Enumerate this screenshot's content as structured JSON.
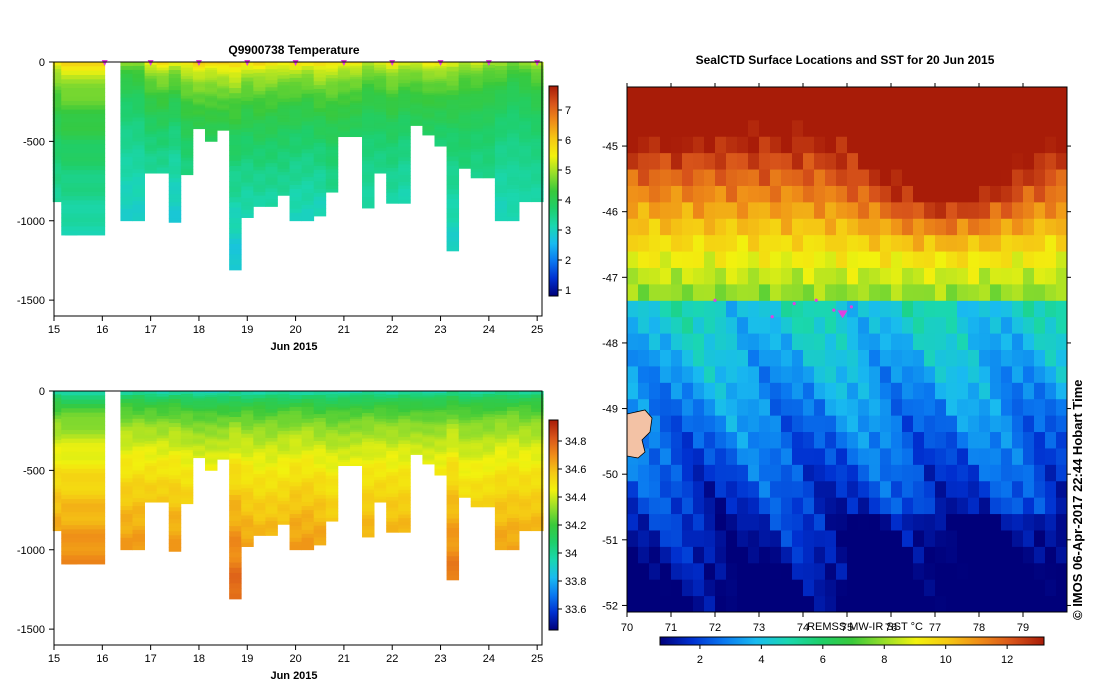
{
  "colors": {
    "profile_scale": [
      "#00007a",
      "#0030d0",
      "#0a78f0",
      "#19bbf0",
      "#1ad7b0",
      "#1ecf6b",
      "#39c93b",
      "#96de2a",
      "#f2f20e",
      "#f5c814",
      "#ef8c18",
      "#d8541a",
      "#a81c08"
    ],
    "missing": "#ffffff",
    "marker": "#e040e0",
    "land": "#f3c2a5"
  },
  "chart_data": [
    {
      "type": "heatmap",
      "name": "temperature-profile",
      "title": "Q9900738  Temperature",
      "xlabel": "Jun 2015",
      "ylabel": "",
      "xlim": [
        15,
        25.1
      ],
      "ylim": [
        -1600,
        0
      ],
      "xticks": [
        "15",
        "16",
        "17",
        "18",
        "19",
        "20",
        "21",
        "22",
        "23",
        "24",
        "25"
      ],
      "yticks": [
        "0",
        "-500",
        "-1000",
        "-1500"
      ],
      "colorbar": {
        "min": 0.8,
        "max": 7.8,
        "ticks": [
          "1",
          "2",
          "3",
          "4",
          "5",
          "6",
          "7"
        ]
      },
      "profile_times": [
        15.1,
        15.35,
        15.6,
        16.5,
        16.75,
        17.0,
        17.25,
        17.5,
        17.75,
        18.0,
        18.25,
        18.5,
        18.75,
        19.0,
        19.25,
        19.5,
        19.75,
        20.0,
        20.25,
        20.5,
        20.75,
        21.0,
        21.25,
        21.5,
        21.75,
        22.0,
        22.25,
        22.5,
        22.75,
        23.0,
        23.25,
        23.5,
        23.75,
        24.0,
        24.25,
        24.5,
        24.75,
        25.0
      ],
      "max_depths": [
        -880,
        -1090,
        -1090,
        -1000,
        -1000,
        -700,
        -700,
        -1010,
        -710,
        -420,
        -500,
        -430,
        -1310,
        -980,
        -910,
        -910,
        -840,
        -1000,
        -1000,
        -970,
        -820,
        -470,
        -470,
        -920,
        -700,
        -890,
        -890,
        -400,
        -460,
        -530,
        -1190,
        -670,
        -730,
        -730,
        -1000,
        -1000,
        -880,
        -880
      ],
      "surface_values": [
        6.2,
        6.5,
        6.6,
        5.2,
        5.3,
        6.1,
        6.4,
        6.0,
        6.3,
        6.7,
        6.4,
        6.6,
        6.8,
        6.3,
        6.5,
        6.4,
        6.2,
        6.3,
        6.2,
        6.6,
        6.3,
        6.0,
        6.2,
        5.6,
        5.8,
        6.2,
        5.9,
        5.7,
        6.1,
        6.2,
        6.0,
        5.4,
        5.7,
        5.3,
        5.5,
        5.0,
        5.2,
        5.6
      ],
      "deep_values": [
        3.3,
        3.1,
        3.1,
        2.9,
        2.9,
        3.3,
        3.3,
        2.8,
        3.5,
        4.0,
        3.9,
        4.0,
        2.7,
        3.1,
        3.2,
        3.2,
        3.3,
        3.0,
        3.0,
        3.0,
        3.4,
        3.9,
        3.8,
        3.2,
        3.4,
        3.2,
        3.1,
        3.9,
        3.8,
        3.6,
        2.9,
        3.6,
        3.4,
        3.5,
        3.0,
        3.1,
        3.2,
        3.2
      ],
      "surface_markers": [
        16.05,
        17.0,
        18.0,
        19.0,
        20.0,
        21.0,
        22.0,
        23.0,
        24.0,
        25.0
      ]
    },
    {
      "type": "heatmap",
      "name": "salinity-profile",
      "title": "",
      "xlabel": "Jun 2015",
      "ylabel": "",
      "xlim": [
        15,
        25.1
      ],
      "ylim": [
        -1600,
        0
      ],
      "xticks": [
        "15",
        "16",
        "17",
        "18",
        "19",
        "20",
        "21",
        "22",
        "23",
        "24",
        "25"
      ],
      "yticks": [
        "0",
        "-500",
        "-1000",
        "-1500"
      ],
      "colorbar": {
        "min": 33.45,
        "max": 34.95,
        "ticks": [
          "33.6",
          "33.8",
          "34",
          "34.2",
          "34.4",
          "34.6",
          "34.8"
        ]
      },
      "profile_times": [
        15.1,
        15.35,
        15.6,
        16.5,
        16.75,
        17.0,
        17.25,
        17.5,
        17.75,
        18.0,
        18.25,
        18.5,
        18.75,
        19.0,
        19.25,
        19.5,
        19.75,
        20.0,
        20.25,
        20.5,
        20.75,
        21.0,
        21.25,
        21.5,
        21.75,
        22.0,
        22.25,
        22.5,
        22.75,
        23.0,
        23.25,
        23.5,
        23.75,
        24.0,
        24.25,
        24.5,
        24.75,
        25.0
      ],
      "max_depths": [
        -880,
        -1090,
        -1090,
        -1000,
        -1000,
        -700,
        -700,
        -1010,
        -710,
        -420,
        -500,
        -430,
        -1310,
        -980,
        -910,
        -910,
        -840,
        -1000,
        -1000,
        -970,
        -820,
        -470,
        -470,
        -920,
        -700,
        -890,
        -890,
        -400,
        -460,
        -530,
        -1190,
        -670,
        -730,
        -730,
        -1000,
        -1000,
        -880,
        -880
      ],
      "surface_values": [
        33.8,
        33.78,
        33.78,
        33.82,
        33.82,
        33.8,
        33.79,
        33.82,
        33.8,
        33.78,
        33.79,
        33.78,
        33.76,
        33.79,
        33.8,
        33.8,
        33.81,
        33.8,
        33.8,
        33.78,
        33.8,
        33.82,
        33.81,
        33.82,
        33.82,
        33.81,
        33.82,
        33.83,
        33.82,
        33.82,
        33.83,
        33.84,
        33.83,
        33.84,
        33.84,
        33.85,
        33.84,
        33.84
      ],
      "deep_values": [
        34.65,
        34.72,
        34.72,
        34.68,
        34.68,
        34.58,
        34.58,
        34.68,
        34.56,
        34.42,
        34.46,
        34.43,
        34.8,
        34.66,
        34.62,
        34.62,
        34.6,
        34.68,
        34.68,
        34.66,
        34.58,
        34.44,
        34.45,
        34.63,
        34.56,
        34.62,
        34.62,
        34.42,
        34.44,
        34.48,
        34.75,
        34.52,
        34.55,
        34.55,
        34.66,
        34.66,
        34.62,
        34.62
      ]
    },
    {
      "type": "heatmap",
      "name": "sst-map",
      "title": "SealCTD Surface Locations and SST for 20 Jun 2015",
      "xlabel": "",
      "ylabel": "",
      "xlim": [
        70,
        80
      ],
      "ylim": [
        -52.1,
        -44.1
      ],
      "xticks": [
        "70",
        "71",
        "72",
        "73",
        "74",
        "75",
        "76",
        "77",
        "78",
        "79"
      ],
      "yticks": [
        "-45",
        "-46",
        "-47",
        "-48",
        "-49",
        "-50",
        "-51",
        "-52"
      ],
      "colorbar": {
        "label": "REMSS MW-IR SST °C",
        "min": 0.7,
        "max": 13.2,
        "ticks": [
          "2",
          "4",
          "6",
          "8",
          "10",
          "12"
        ]
      },
      "seal_locations": [
        [
          74.9,
          -47.55
        ],
        [
          74.7,
          -47.5
        ],
        [
          75.1,
          -47.45
        ],
        [
          73.3,
          -47.6
        ],
        [
          73.8,
          -47.4
        ],
        [
          72.0,
          -47.35
        ],
        [
          74.3,
          -47.35
        ]
      ]
    }
  ],
  "credit": "© IMOS 06-Apr-2017 22:44 Hobart Time"
}
